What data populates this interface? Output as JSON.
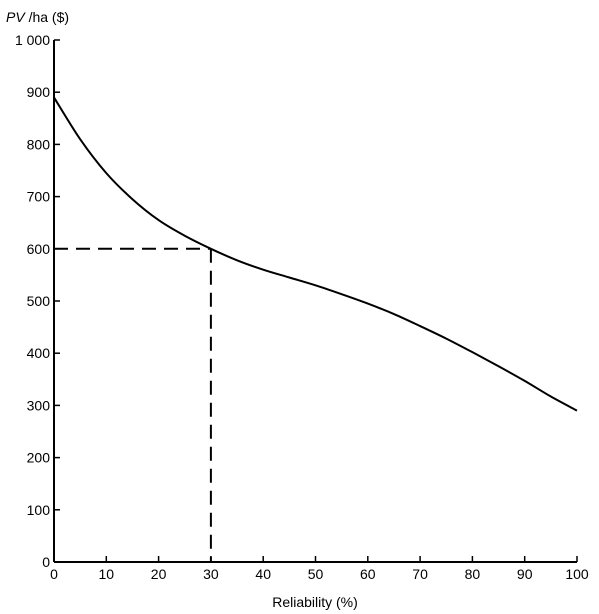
{
  "chart_data": {
    "type": "line",
    "title": "",
    "xlabel": "Reliability (%)",
    "ylabel": {
      "italic": "PV",
      "rest": " /ha ($)"
    },
    "xlim": [
      0,
      100
    ],
    "ylim": [
      0,
      1000
    ],
    "x_ticks": [
      0,
      10,
      20,
      30,
      40,
      50,
      60,
      70,
      80,
      90,
      100
    ],
    "y_ticks": [
      0,
      100,
      200,
      300,
      400,
      500,
      600,
      700,
      800,
      900,
      1000
    ],
    "y_tick_labels": [
      "0",
      "100",
      "200",
      "300",
      "400",
      "500",
      "600",
      "700",
      "800",
      "900",
      "1 000"
    ],
    "grid": false,
    "series": [
      {
        "x": [
          0,
          5,
          10,
          15,
          20,
          25,
          30,
          35,
          40,
          45,
          50,
          55,
          60,
          65,
          70,
          75,
          80,
          85,
          90,
          95,
          100
        ],
        "values": [
          890,
          810,
          745,
          695,
          655,
          625,
          600,
          578,
          560,
          545,
          530,
          513,
          495,
          475,
          452,
          428,
          402,
          375,
          347,
          317,
          290
        ]
      }
    ],
    "annotation": {
      "x": 30,
      "y": 600,
      "style": "dashed"
    }
  }
}
